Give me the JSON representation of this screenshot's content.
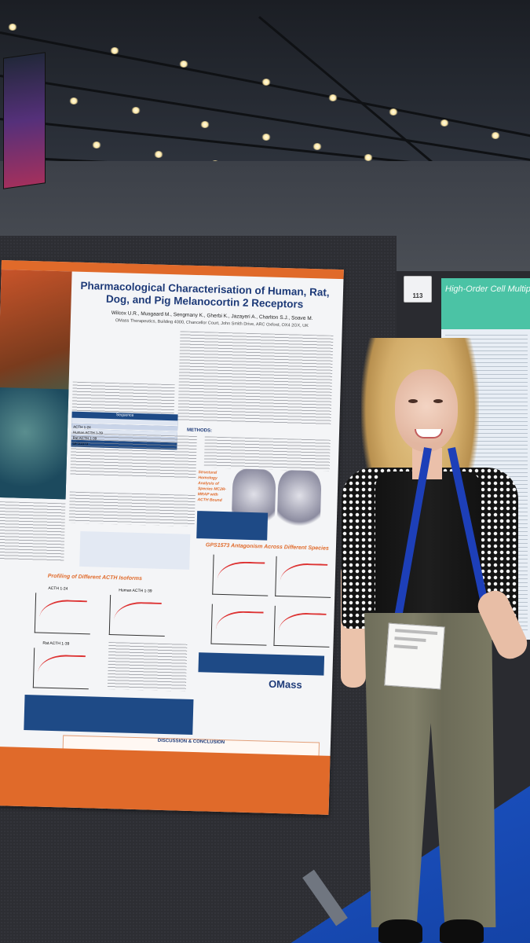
{
  "poster": {
    "title": "Pharmacological Characterisation of Human, Rat, Dog, and Pig Melanocortin 2 Receptors",
    "authors": "Wilcox U.R., Musgaard M., Sengmany K., Gherbi K., Jazayeri A., Charlton S.J., Soave M.",
    "affiliation": "OMass Therapeutics, Building 4000, Chancellor Court, John Smith Drive, ARC Oxford, OX4 2GX, UK",
    "methods_heading": "METHODS:",
    "section_profiling": "Profiling of Different ACTH Isoforms",
    "section_antagonism": "GPS1573 Antagonism Across Different Species",
    "section_homology": "Structural Homology Analysis of Species MC2R-MRAP with ACTH Bound",
    "conclusion_heading": "DISCUSSION & CONCLUSION",
    "logo_text": "OMass",
    "table_header": "Sequence",
    "table_rows": [
      "ACTH 1-24",
      "Human ACTH 1-39",
      "Rat ACTH 1-39",
      "GPS1573"
    ],
    "plot_labels": [
      "ACTH 1-24",
      "Human ACTH 1-39",
      "Rat ACTH 1-39"
    ]
  },
  "booth_number": "113",
  "neighbour_poster": {
    "title": "High-Order Cell Multiplexing for In"
  },
  "colors": {
    "poster_accent": "#e06a2a",
    "poster_title": "#1d3a78",
    "neighbour_header": "#4bc3a5",
    "lanyard": "#1d3fb8",
    "floor": "#1d55c8"
  }
}
